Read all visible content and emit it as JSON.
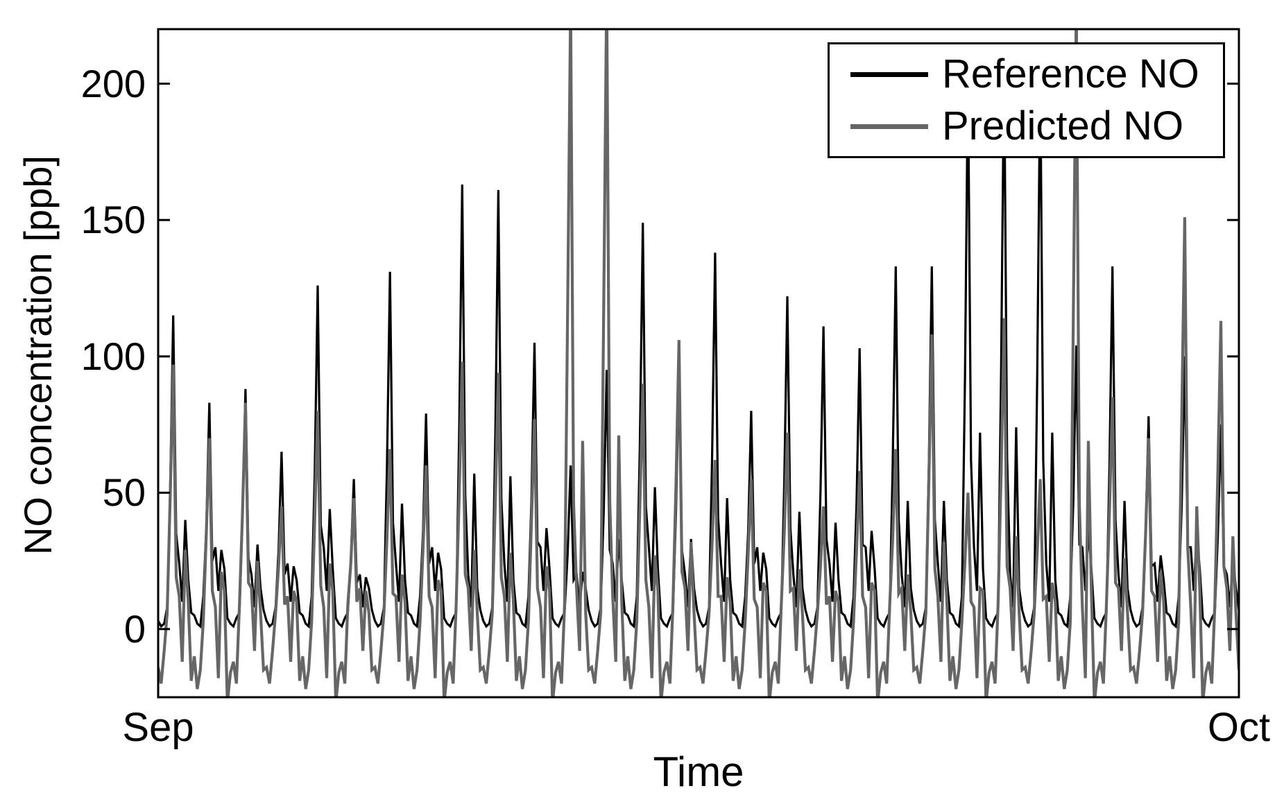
{
  "figure": {
    "background": "#ffffff"
  },
  "chart_data": {
    "type": "line",
    "title": "",
    "xlabel": "Time",
    "ylabel": "NO concentration [ppb]",
    "grid": false,
    "legend_position": "top-right",
    "ylim": [
      -25,
      220
    ],
    "x_ticks": [
      {
        "pos": 0.0,
        "label": "Sep"
      },
      {
        "pos": 1.0,
        "label": "Oct"
      }
    ],
    "y_ticks": [
      {
        "value": 0,
        "label": "0"
      },
      {
        "value": 50,
        "label": "50"
      },
      {
        "value": 100,
        "label": "100"
      },
      {
        "value": 150,
        "label": "150"
      },
      {
        "value": 200,
        "label": "200"
      }
    ],
    "days": 30,
    "points_per_day": 12,
    "series": [
      {
        "name": "Reference NO",
        "color": "#000000",
        "values": [
          3,
          1,
          2,
          8,
          52,
          115,
          35,
          24,
          10,
          40,
          18,
          6,
          5,
          2,
          1,
          12,
          37,
          83,
          25,
          30,
          14,
          29,
          22,
          4,
          2,
          1,
          4,
          6,
          40,
          88,
          26,
          20,
          8,
          31,
          15,
          7,
          3,
          1,
          2,
          8,
          29,
          65,
          20,
          24,
          10,
          23,
          18,
          6,
          5,
          2,
          1,
          12,
          57,
          126,
          38,
          30,
          14,
          44,
          22,
          4,
          2,
          1,
          4,
          6,
          25,
          55,
          17,
          20,
          8,
          19,
          15,
          7,
          3,
          1,
          2,
          8,
          59,
          131,
          39,
          24,
          10,
          46,
          18,
          6,
          5,
          2,
          1,
          12,
          36,
          79,
          24,
          30,
          14,
          28,
          22,
          4,
          2,
          1,
          4,
          6,
          73,
          163,
          49,
          20,
          8,
          57,
          15,
          7,
          3,
          1,
          2,
          8,
          72,
          161,
          48,
          24,
          10,
          56,
          18,
          6,
          5,
          2,
          1,
          12,
          47,
          105,
          32,
          30,
          14,
          37,
          22,
          4,
          2,
          1,
          4,
          6,
          27,
          60,
          18,
          20,
          8,
          21,
          15,
          7,
          3,
          1,
          2,
          8,
          43,
          95,
          29,
          24,
          10,
          33,
          18,
          6,
          5,
          2,
          1,
          12,
          67,
          149,
          45,
          30,
          14,
          52,
          22,
          4,
          2,
          1,
          4,
          6,
          43,
          95,
          29,
          20,
          8,
          33,
          15,
          7,
          3,
          1,
          2,
          8,
          62,
          138,
          41,
          24,
          10,
          48,
          18,
          6,
          5,
          2,
          1,
          12,
          36,
          80,
          24,
          30,
          14,
          28,
          22,
          4,
          2,
          1,
          4,
          6,
          55,
          122,
          37,
          20,
          8,
          43,
          15,
          7,
          3,
          1,
          2,
          8,
          50,
          111,
          33,
          24,
          10,
          39,
          18,
          6,
          5,
          2,
          1,
          12,
          46,
          103,
          31,
          30,
          14,
          36,
          22,
          4,
          2,
          1,
          4,
          6,
          60,
          133,
          40,
          20,
          8,
          47,
          15,
          7,
          3,
          1,
          2,
          8,
          60,
          133,
          40,
          24,
          10,
          47,
          18,
          6,
          5,
          2,
          1,
          12,
          92,
          205,
          62,
          30,
          14,
          72,
          22,
          4,
          2,
          1,
          4,
          6,
          95,
          210,
          63,
          20,
          8,
          74,
          15,
          7,
          3,
          1,
          2,
          8,
          92,
          205,
          62,
          24,
          10,
          72,
          18,
          6,
          5,
          2,
          1,
          12,
          47,
          104,
          31,
          30,
          14,
          36,
          22,
          4,
          2,
          1,
          4,
          6,
          60,
          133,
          40,
          20,
          8,
          47,
          15,
          7,
          3,
          1,
          2,
          8,
          35,
          78,
          23,
          24,
          10,
          27,
          18,
          6,
          5,
          2,
          1,
          12,
          45,
          100,
          30,
          30,
          14,
          35,
          22,
          4,
          2,
          1,
          4,
          6,
          34,
          75,
          23,
          20,
          8,
          26,
          15,
          7
        ]
      },
      {
        "name": "Predicted NO",
        "color": "#666666",
        "values": [
          -14,
          -20,
          -8,
          6,
          49,
          97,
          19,
          12,
          -12,
          29,
          10,
          -19,
          -10,
          -22,
          -15,
          3,
          35,
          70,
          14,
          8,
          -18,
          21,
          14,
          -27,
          -16,
          -12,
          -20,
          9,
          42,
          83,
          17,
          15,
          -8,
          25,
          6,
          -15,
          -14,
          -20,
          -8,
          6,
          23,
          45,
          9,
          12,
          -12,
          14,
          10,
          -19,
          -10,
          -22,
          -15,
          3,
          40,
          80,
          16,
          8,
          -18,
          24,
          14,
          -27,
          -16,
          -12,
          -20,
          9,
          24,
          48,
          10,
          15,
          -8,
          14,
          6,
          -15,
          -14,
          -20,
          -8,
          6,
          33,
          66,
          13,
          12,
          -12,
          20,
          10,
          -19,
          -10,
          -22,
          -15,
          3,
          30,
          60,
          12,
          8,
          -18,
          18,
          14,
          -27,
          -16,
          -12,
          -20,
          9,
          49,
          98,
          20,
          15,
          -8,
          29,
          6,
          -15,
          -14,
          -20,
          -8,
          6,
          47,
          94,
          19,
          12,
          -12,
          28,
          10,
          -19,
          -10,
          -22,
          -15,
          3,
          39,
          77,
          15,
          8,
          -18,
          23,
          14,
          -27,
          -16,
          -12,
          -20,
          9,
          115,
          230,
          46,
          15,
          -8,
          69,
          6,
          -15,
          -14,
          -20,
          -8,
          6,
          118,
          235,
          47,
          12,
          -12,
          71,
          10,
          -19,
          -10,
          -22,
          -15,
          3,
          45,
          90,
          18,
          8,
          -18,
          27,
          14,
          -27,
          -16,
          -12,
          -20,
          9,
          53,
          106,
          21,
          15,
          -8,
          32,
          6,
          -15,
          -14,
          -20,
          -8,
          6,
          31,
          62,
          12,
          12,
          -12,
          19,
          10,
          -19,
          -10,
          -22,
          -15,
          3,
          28,
          55,
          11,
          8,
          -18,
          17,
          14,
          -27,
          -16,
          -12,
          -20,
          9,
          36,
          72,
          14,
          15,
          -8,
          22,
          6,
          -15,
          -14,
          -20,
          -8,
          6,
          23,
          45,
          9,
          12,
          -12,
          14,
          10,
          -19,
          -10,
          -22,
          -15,
          3,
          29,
          58,
          12,
          8,
          -18,
          17,
          14,
          -27,
          -16,
          -12,
          -20,
          9,
          33,
          66,
          13,
          15,
          -8,
          20,
          6,
          -15,
          -14,
          -20,
          -8,
          6,
          54,
          108,
          22,
          12,
          -12,
          32,
          10,
          -19,
          -10,
          -22,
          -15,
          3,
          25,
          50,
          10,
          8,
          -18,
          15,
          14,
          -27,
          -16,
          -12,
          -20,
          9,
          57,
          114,
          23,
          15,
          -8,
          34,
          6,
          -15,
          -14,
          -20,
          -8,
          6,
          28,
          55,
          11,
          12,
          -12,
          17,
          10,
          -19,
          -10,
          -22,
          -15,
          3,
          115,
          230,
          46,
          8,
          -18,
          69,
          14,
          -27,
          -16,
          -12,
          -20,
          9,
          43,
          85,
          17,
          15,
          -8,
          26,
          6,
          -15,
          -14,
          -20,
          -8,
          6,
          35,
          70,
          14,
          12,
          -12,
          21,
          10,
          -19,
          -10,
          -22,
          -15,
          3,
          76,
          151,
          30,
          8,
          -18,
          45,
          14,
          -27,
          -16,
          -12,
          -20,
          9,
          57,
          113,
          23,
          15,
          -8,
          34,
          6,
          -15
        ]
      }
    ]
  }
}
